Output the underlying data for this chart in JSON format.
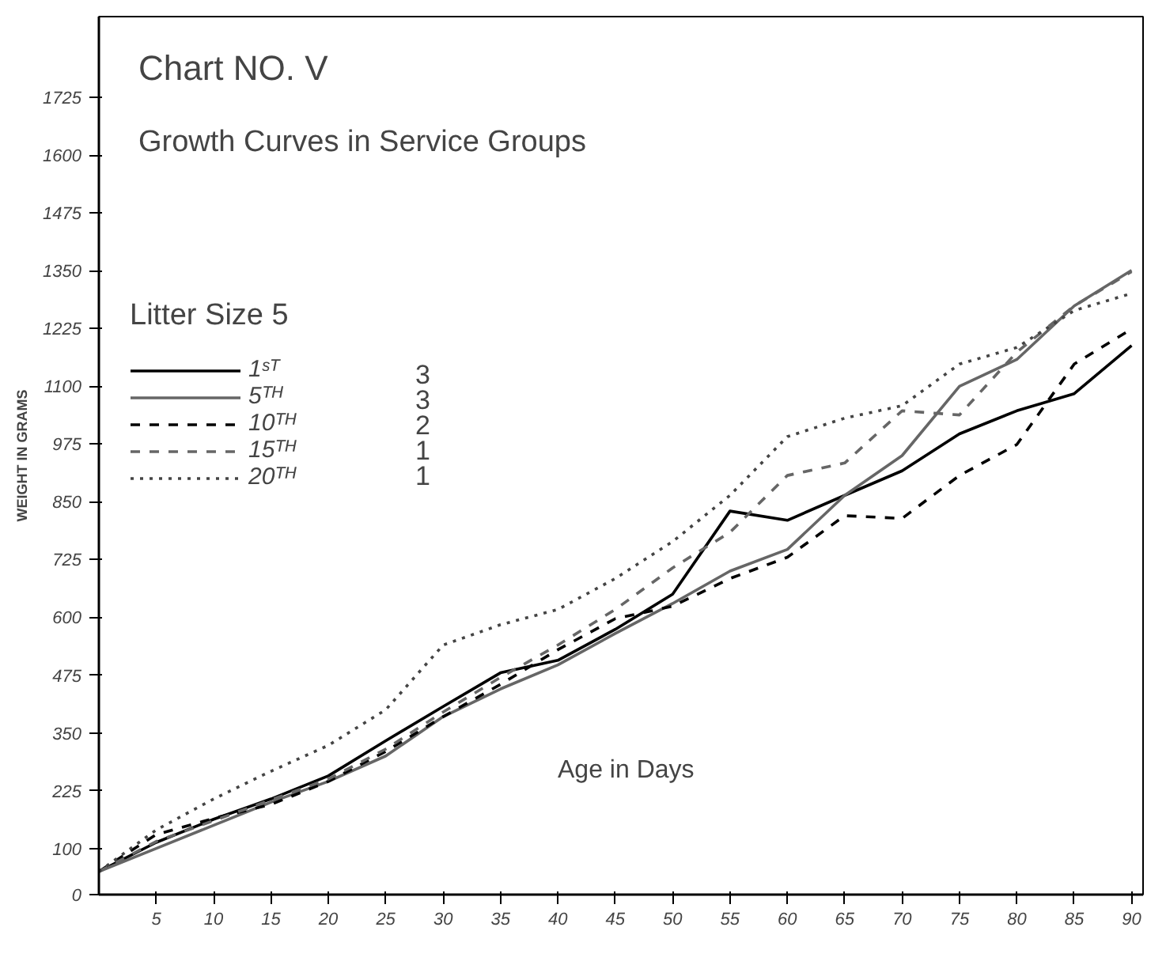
{
  "chart_data": {
    "type": "line",
    "title": "Chart NO. V",
    "subtitle": "Growth Curves in Service Groups",
    "legend_title": "Litter Size 5",
    "xlabel": "Age in Days",
    "ylabel": "WEIGHT IN GRAMS",
    "x": [
      0,
      5,
      10,
      15,
      20,
      25,
      30,
      35,
      40,
      45,
      50,
      55,
      60,
      65,
      70,
      75,
      80,
      85,
      90
    ],
    "series": [
      {
        "name": "1ˢᵀ",
        "color": "#000000",
        "line_style": "solid",
        "values": [
          50,
          113,
          163,
          207,
          257,
          333,
          407,
          480,
          507,
          574,
          650,
          830,
          810,
          864,
          917,
          997,
          1047,
          1084,
          1188
        ]
      },
      {
        "name": "5ᵀᴴ",
        "color": "#666666",
        "line_style": "solid",
        "values": [
          50,
          100,
          150,
          200,
          245,
          300,
          385,
          445,
          497,
          565,
          630,
          700,
          747,
          864,
          950,
          1100,
          1158,
          1274,
          1351
        ]
      },
      {
        "name": "10ᵀᴴ",
        "color": "#000000",
        "line_style": "dashed",
        "values": [
          50,
          130,
          165,
          195,
          245,
          310,
          385,
          455,
          530,
          597,
          624,
          684,
          730,
          820,
          814,
          907,
          974,
          1148,
          1224
        ]
      },
      {
        "name": "15ᵀᴴ",
        "color": "#666666",
        "line_style": "dashed",
        "values": [
          50,
          115,
          160,
          205,
          250,
          315,
          395,
          470,
          540,
          617,
          707,
          784,
          907,
          934,
          1047,
          1038,
          1174,
          1274,
          1348
        ]
      },
      {
        "name": "20ᵀᴴ",
        "color": "#444444",
        "line_style": "dotted",
        "values": [
          50,
          140,
          207,
          267,
          323,
          400,
          540,
          584,
          617,
          684,
          764,
          864,
          991,
          1031,
          1058,
          1148,
          1184,
          1264,
          1301
        ]
      }
    ],
    "annotations": [
      "3",
      "3",
      "2",
      "1",
      "1"
    ],
    "xlim": [
      0,
      91
    ],
    "ylim": [
      0,
      1900
    ],
    "xticks": [
      5,
      10,
      15,
      20,
      25,
      30,
      35,
      40,
      45,
      50,
      55,
      60,
      65,
      70,
      75,
      80,
      85,
      90
    ],
    "yticks": [
      0,
      100,
      225,
      350,
      475,
      600,
      725,
      850,
      975,
      1100,
      1225,
      1350,
      1475,
      1600,
      1725
    ],
    "grid": false,
    "legend": "top left"
  }
}
